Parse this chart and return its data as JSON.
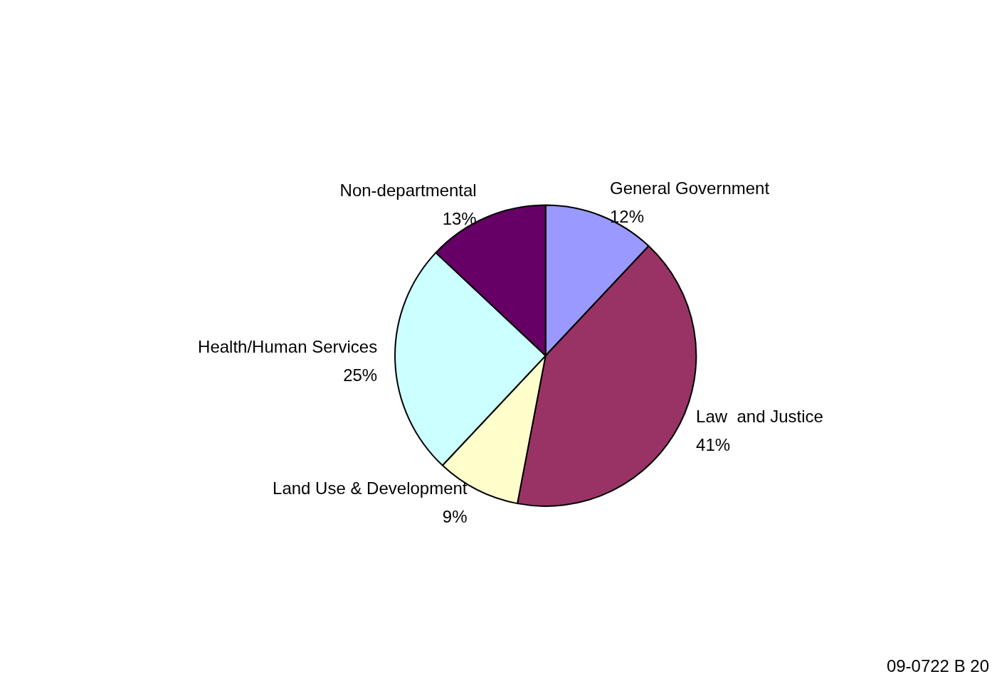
{
  "chart_data": {
    "type": "pie",
    "categories": [
      "General Government",
      "Law  and Justice",
      "Land Use & Development",
      "Health/Human Services",
      "Non-departmental"
    ],
    "values": [
      12,
      41,
      9,
      25,
      13
    ],
    "value_labels": [
      "12%",
      "41%",
      "9%",
      "25%",
      "13%"
    ],
    "colors": [
      "#9999ff",
      "#993366",
      "#ffffcc",
      "#ccffff",
      "#660066"
    ],
    "annotations": [
      "09-0722 B 20"
    ],
    "legend": false
  }
}
